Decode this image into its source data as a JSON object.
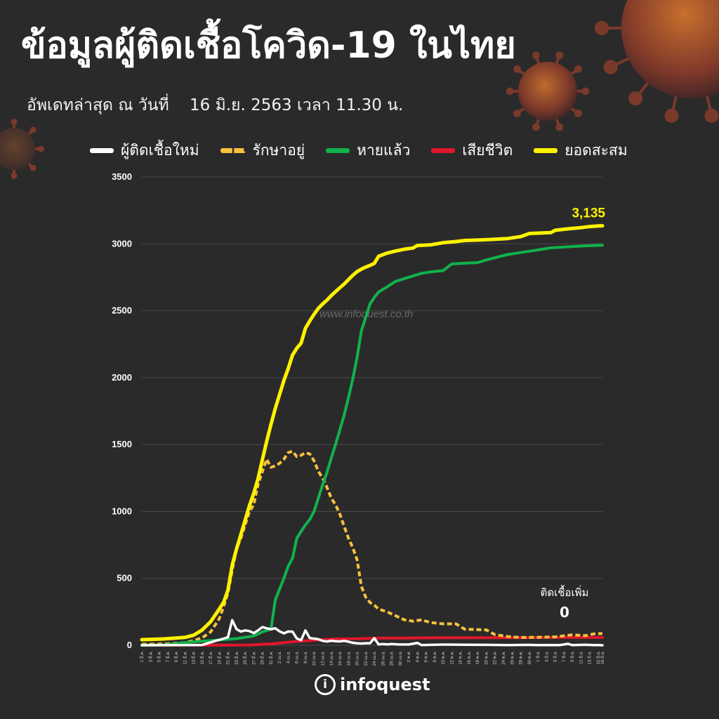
{
  "header": {
    "title": "ข้อมูลผู้ติดเชื้อโควิด-19 ในไทย",
    "updated_label": "อัพเดทล่าสุด ณ วันที่",
    "updated_date": "16 มิ.ย. 2563 เวลา 11.30 น."
  },
  "watermark": "www.infoquest.co.th",
  "brand": {
    "icon": "i",
    "name": "infoquest"
  },
  "annotation": {
    "label": "ติดเชื้อเพิ่ม",
    "value": "0"
  },
  "total_label": "3,135",
  "colors": {
    "background": "#2b2a2a",
    "new_cases": "#ffffff",
    "active": "#f7c23c",
    "recovered": "#10b34c",
    "deaths": "#e0162b",
    "cumulative": "#fff200",
    "grid": "#4a4848"
  },
  "chart_data": {
    "type": "line",
    "ylim": [
      0,
      3500
    ],
    "yticks": [
      "0",
      "500",
      "1000",
      "1500",
      "2000",
      "2500",
      "3000",
      "3500"
    ],
    "xticks": [
      "1 มี.ค.",
      "3 มี.ค.",
      "5 มี.ค.",
      "7 มี.ค.",
      "9 มี.ค.",
      "11 มี.ค.",
      "13 มี.ค.",
      "15 มี.ค.",
      "17 มี.ค.",
      "19 มี.ค.",
      "21 มี.ค.",
      "23 มี.ค.",
      "25 มี.ค.",
      "27 มี.ค.",
      "29 มี.ค.",
      "31 มี.ค.",
      "2 เม.ย.",
      "4 เม.ย.",
      "6 เม.ย.",
      "8 เม.ย.",
      "10 เม.ย.",
      "12 เม.ย.",
      "14 เม.ย.",
      "16 เม.ย.",
      "18 เม.ย.",
      "20 เม.ย.",
      "22 เม.ย.",
      "24 เม.ย.",
      "26 เม.ย.",
      "28 เม.ย.",
      "30 เม.ย.",
      "2 พ.ค.",
      "4 พ.ค.",
      "6 พ.ค.",
      "8 พ.ค.",
      "10 พ.ค.",
      "12 พ.ค.",
      "14 พ.ค.",
      "16 พ.ค.",
      "18 พ.ค.",
      "20 พ.ค.",
      "22 พ.ค.",
      "24 พ.ค.",
      "26 พ.ค.",
      "28 พ.ค.",
      "30 พ.ค.",
      "1 มิ.ย.",
      "3 มิ.ย.",
      "5 มิ.ย.",
      "7 มิ.ย.",
      "9 มิ.ย.",
      "11 มิ.ย.",
      "13 มิ.ย.",
      "15 มิ.ย.",
      "16 มิ.ย."
    ],
    "xtick_days": [
      0,
      2,
      4,
      6,
      8,
      10,
      12,
      14,
      16,
      18,
      20,
      22,
      24,
      26,
      28,
      30,
      32,
      34,
      36,
      38,
      40,
      42,
      44,
      46,
      48,
      50,
      52,
      54,
      56,
      58,
      60,
      62,
      64,
      66,
      68,
      70,
      72,
      74,
      76,
      78,
      80,
      82,
      84,
      86,
      88,
      90,
      92,
      94,
      96,
      98,
      100,
      102,
      104,
      106,
      107
    ],
    "xlim": [
      0,
      107
    ],
    "legend": "top",
    "series": [
      {
        "name": "ผู้ติดเชื้อใหม่",
        "key": "new_cases",
        "style": "solid",
        "points": [
          [
            0,
            0
          ],
          [
            14,
            2
          ],
          [
            17,
            32
          ],
          [
            19,
            50
          ],
          [
            20,
            60
          ],
          [
            21,
            188
          ],
          [
            22,
            120
          ],
          [
            23,
            103
          ],
          [
            24,
            111
          ],
          [
            25,
            106
          ],
          [
            26,
            91
          ],
          [
            27,
            111
          ],
          [
            28,
            136
          ],
          [
            29,
            127
          ],
          [
            30,
            120
          ],
          [
            31,
            127
          ],
          [
            32,
            104
          ],
          [
            33,
            89
          ],
          [
            34,
            103
          ],
          [
            35,
            102
          ],
          [
            36,
            51
          ],
          [
            37,
            38
          ],
          [
            38,
            111
          ],
          [
            39,
            54
          ],
          [
            40,
            50
          ],
          [
            41,
            45
          ],
          [
            42,
            33
          ],
          [
            43,
            28
          ],
          [
            44,
            34
          ],
          [
            45,
            30
          ],
          [
            46,
            29
          ],
          [
            47,
            33
          ],
          [
            48,
            27
          ],
          [
            49,
            19
          ],
          [
            50,
            15
          ],
          [
            51,
            13
          ],
          [
            52,
            15
          ],
          [
            53,
            15
          ],
          [
            54,
            53
          ],
          [
            55,
            7
          ],
          [
            56,
            9
          ],
          [
            57,
            7
          ],
          [
            58,
            9
          ],
          [
            60,
            6
          ],
          [
            62,
            6
          ],
          [
            64,
            18
          ],
          [
            65,
            1
          ],
          [
            67,
            3
          ],
          [
            70,
            5
          ],
          [
            75,
            4
          ],
          [
            80,
            3
          ],
          [
            85,
            1
          ],
          [
            90,
            3
          ],
          [
            92,
            1
          ],
          [
            95,
            2
          ],
          [
            97,
            1
          ],
          [
            99,
            11
          ],
          [
            100,
            1
          ],
          [
            103,
            4
          ],
          [
            105,
            1
          ],
          [
            106,
            2
          ],
          [
            107,
            0
          ]
        ]
      },
      {
        "name": "รักษาอยู่",
        "key": "active",
        "style": "dashed",
        "points": [
          [
            0,
            8
          ],
          [
            5,
            9
          ],
          [
            10,
            20
          ],
          [
            12,
            35
          ],
          [
            14,
            55
          ],
          [
            16,
            100
          ],
          [
            18,
            200
          ],
          [
            19,
            290
          ],
          [
            20,
            390
          ],
          [
            21,
            560
          ],
          [
            22,
            720
          ],
          [
            23,
            800
          ],
          [
            24,
            900
          ],
          [
            25,
            1000
          ],
          [
            26,
            1050
          ],
          [
            27,
            1200
          ],
          [
            28,
            1300
          ],
          [
            29,
            1390
          ],
          [
            30,
            1330
          ],
          [
            31,
            1340
          ],
          [
            32,
            1360
          ],
          [
            33,
            1390
          ],
          [
            34,
            1440
          ],
          [
            35,
            1450
          ],
          [
            36,
            1410
          ],
          [
            37,
            1420
          ],
          [
            38,
            1440
          ],
          [
            39,
            1430
          ],
          [
            40,
            1380
          ],
          [
            41,
            1300
          ],
          [
            42,
            1250
          ],
          [
            43,
            1180
          ],
          [
            44,
            1100
          ],
          [
            45,
            1050
          ],
          [
            46,
            980
          ],
          [
            47,
            890
          ],
          [
            48,
            800
          ],
          [
            49,
            730
          ],
          [
            50,
            640
          ],
          [
            51,
            440
          ],
          [
            52,
            360
          ],
          [
            53,
            320
          ],
          [
            54,
            300
          ],
          [
            55,
            270
          ],
          [
            57,
            250
          ],
          [
            59,
            220
          ],
          [
            61,
            190
          ],
          [
            63,
            180
          ],
          [
            65,
            190
          ],
          [
            67,
            170
          ],
          [
            70,
            160
          ],
          [
            73,
            160
          ],
          [
            75,
            120
          ],
          [
            80,
            115
          ],
          [
            82,
            80
          ],
          [
            85,
            65
          ],
          [
            88,
            58
          ],
          [
            92,
            60
          ],
          [
            96,
            63
          ],
          [
            100,
            78
          ],
          [
            103,
            72
          ],
          [
            105,
            85
          ],
          [
            107,
            88
          ]
        ]
      },
      {
        "name": "หายแล้ว",
        "key": "recovered",
        "style": "solid",
        "points": [
          [
            0,
            1
          ],
          [
            5,
            2
          ],
          [
            10,
            20
          ],
          [
            14,
            30
          ],
          [
            18,
            40
          ],
          [
            22,
            50
          ],
          [
            26,
            70
          ],
          [
            28,
            100
          ],
          [
            30,
            120
          ],
          [
            31,
            340
          ],
          [
            32,
            420
          ],
          [
            33,
            500
          ],
          [
            34,
            590
          ],
          [
            35,
            650
          ],
          [
            36,
            800
          ],
          [
            37,
            850
          ],
          [
            38,
            900
          ],
          [
            39,
            940
          ],
          [
            40,
            1000
          ],
          [
            41,
            1100
          ],
          [
            42,
            1200
          ],
          [
            43,
            1290
          ],
          [
            44,
            1400
          ],
          [
            45,
            1500
          ],
          [
            46,
            1610
          ],
          [
            47,
            1720
          ],
          [
            48,
            1850
          ],
          [
            49,
            1990
          ],
          [
            50,
            2150
          ],
          [
            51,
            2350
          ],
          [
            52,
            2450
          ],
          [
            53,
            2550
          ],
          [
            54,
            2600
          ],
          [
            55,
            2640
          ],
          [
            57,
            2680
          ],
          [
            59,
            2720
          ],
          [
            61,
            2740
          ],
          [
            63,
            2760
          ],
          [
            65,
            2780
          ],
          [
            67,
            2790
          ],
          [
            70,
            2800
          ],
          [
            72,
            2850
          ],
          [
            75,
            2855
          ],
          [
            78,
            2860
          ],
          [
            80,
            2880
          ],
          [
            85,
            2920
          ],
          [
            88,
            2935
          ],
          [
            92,
            2955
          ],
          [
            95,
            2970
          ],
          [
            100,
            2980
          ],
          [
            103,
            2985
          ],
          [
            107,
            2990
          ]
        ]
      },
      {
        "name": "เสียชีวิต",
        "key": "deaths",
        "style": "solid",
        "points": [
          [
            0,
            1
          ],
          [
            20,
            1
          ],
          [
            25,
            2
          ],
          [
            30,
            10
          ],
          [
            35,
            26
          ],
          [
            40,
            38
          ],
          [
            45,
            47
          ],
          [
            50,
            49
          ],
          [
            55,
            54
          ],
          [
            60,
            54
          ],
          [
            65,
            55
          ],
          [
            70,
            56
          ],
          [
            75,
            56
          ],
          [
            80,
            56
          ],
          [
            85,
            57
          ],
          [
            90,
            57
          ],
          [
            95,
            58
          ],
          [
            107,
            58
          ]
        ]
      },
      {
        "name": "ยอดสะสม",
        "key": "cumulative",
        "style": "solid",
        "points": [
          [
            0,
            42
          ],
          [
            5,
            47
          ],
          [
            10,
            59
          ],
          [
            12,
            75
          ],
          [
            14,
            114
          ],
          [
            16,
            177
          ],
          [
            18,
            272
          ],
          [
            19,
            322
          ],
          [
            20,
            411
          ],
          [
            21,
            599
          ],
          [
            22,
            721
          ],
          [
            23,
            827
          ],
          [
            24,
            934
          ],
          [
            25,
            1045
          ],
          [
            26,
            1136
          ],
          [
            27,
            1245
          ],
          [
            28,
            1388
          ],
          [
            29,
            1524
          ],
          [
            30,
            1651
          ],
          [
            31,
            1771
          ],
          [
            32,
            1875
          ],
          [
            33,
            1978
          ],
          [
            34,
            2067
          ],
          [
            35,
            2169
          ],
          [
            36,
            2220
          ],
          [
            37,
            2258
          ],
          [
            38,
            2369
          ],
          [
            39,
            2423
          ],
          [
            40,
            2473
          ],
          [
            41,
            2518
          ],
          [
            42,
            2551
          ],
          [
            43,
            2579
          ],
          [
            44,
            2613
          ],
          [
            45,
            2643
          ],
          [
            46,
            2672
          ],
          [
            47,
            2700
          ],
          [
            48,
            2733
          ],
          [
            49,
            2765
          ],
          [
            50,
            2792
          ],
          [
            51,
            2811
          ],
          [
            52,
            2826
          ],
          [
            53,
            2839
          ],
          [
            54,
            2854
          ],
          [
            55,
            2907
          ],
          [
            57,
            2931
          ],
          [
            59,
            2947
          ],
          [
            61,
            2960
          ],
          [
            63,
            2969
          ],
          [
            64,
            2988
          ],
          [
            65,
            2989
          ],
          [
            67,
            2992
          ],
          [
            70,
            3009
          ],
          [
            73,
            3017
          ],
          [
            75,
            3025
          ],
          [
            78,
            3028
          ],
          [
            80,
            3031
          ],
          [
            85,
            3040
          ],
          [
            88,
            3054
          ],
          [
            90,
            3077
          ],
          [
            93,
            3082
          ],
          [
            95,
            3084
          ],
          [
            96,
            3101
          ],
          [
            99,
            3112
          ],
          [
            102,
            3121
          ],
          [
            104,
            3129
          ],
          [
            106,
            3134
          ],
          [
            107,
            3135
          ]
        ]
      }
    ]
  }
}
